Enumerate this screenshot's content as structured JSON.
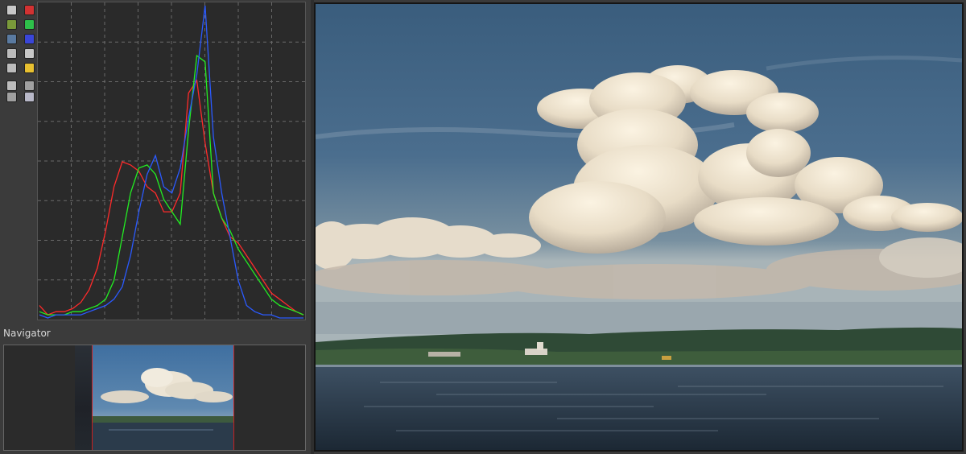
{
  "navigator": {
    "title": "Navigator"
  },
  "toolbar": {
    "buttons": [
      {
        "name": "luminance-mode-icon",
        "color": "#c8c8c8"
      },
      {
        "name": "red-channel-toggle",
        "color": "#d23232"
      },
      {
        "name": "rgb-mode-icon",
        "color": "#7a9a3a"
      },
      {
        "name": "green-channel-toggle",
        "color": "#2ec04a"
      },
      {
        "name": "rgb-mode-alt-icon",
        "color": "#5a7aa0"
      },
      {
        "name": "blue-channel-toggle",
        "color": "#3a46d8"
      },
      {
        "name": "chroma-icon",
        "color": "#bcbcbc"
      },
      {
        "name": "luminance-toggle",
        "color": "#c8c8c8"
      },
      {
        "name": "raw-icon",
        "color": "#bcbcbc"
      },
      {
        "name": "yellow-toggle",
        "color": "#e8c030"
      },
      {
        "name": "scope-icon",
        "color": "#bcbcbc"
      },
      {
        "name": "gradient-bar-icon",
        "color": "#a0a0a0"
      },
      {
        "name": "bar-mode-icon",
        "color": "#a0a0a0"
      },
      {
        "name": "rgb-bar-icon",
        "color": "#b8b8c8"
      }
    ]
  },
  "histogram": {
    "colors": {
      "red": "#ff2a2a",
      "green": "#22ee22",
      "blue": "#2a5aff",
      "background": "#2a2a2a",
      "grid": "#6a6a6a"
    },
    "grid": "dashed",
    "x_divisions": 8,
    "y_divisions": 8
  },
  "chart_data": {
    "type": "line",
    "x": [
      0,
      8,
      16,
      24,
      32,
      40,
      48,
      56,
      64,
      72,
      80,
      88,
      96,
      104,
      112,
      120,
      128,
      136,
      144,
      152,
      160,
      168,
      176,
      184,
      192,
      200,
      208,
      216,
      224,
      232,
      240,
      248,
      255
    ],
    "series": [
      {
        "color": "red",
        "values": [
          0.04,
          0.01,
          0.02,
          0.02,
          0.03,
          0.05,
          0.09,
          0.16,
          0.28,
          0.42,
          0.5,
          0.49,
          0.47,
          0.42,
          0.4,
          0.34,
          0.34,
          0.4,
          0.72,
          0.76,
          0.56,
          0.4,
          0.32,
          0.26,
          0.24,
          0.2,
          0.16,
          0.12,
          0.08,
          0.06,
          0.04,
          0.02,
          0.01
        ]
      },
      {
        "color": "green",
        "values": [
          0.02,
          0.01,
          0.01,
          0.01,
          0.02,
          0.02,
          0.03,
          0.04,
          0.06,
          0.12,
          0.26,
          0.4,
          0.48,
          0.49,
          0.46,
          0.38,
          0.34,
          0.3,
          0.6,
          0.84,
          0.82,
          0.4,
          0.32,
          0.28,
          0.22,
          0.18,
          0.14,
          0.1,
          0.06,
          0.04,
          0.03,
          0.02,
          0.01
        ]
      },
      {
        "color": "blue",
        "values": [
          0.01,
          0.0,
          0.01,
          0.01,
          0.01,
          0.01,
          0.02,
          0.03,
          0.04,
          0.06,
          0.1,
          0.2,
          0.34,
          0.46,
          0.52,
          0.42,
          0.4,
          0.48,
          0.64,
          0.78,
          1.0,
          0.58,
          0.4,
          0.26,
          0.12,
          0.04,
          0.02,
          0.01,
          0.01,
          0.0,
          0.0,
          0.0,
          0.0
        ]
      }
    ],
    "xlim": [
      0,
      255
    ],
    "ylim": [
      0,
      1
    ]
  }
}
